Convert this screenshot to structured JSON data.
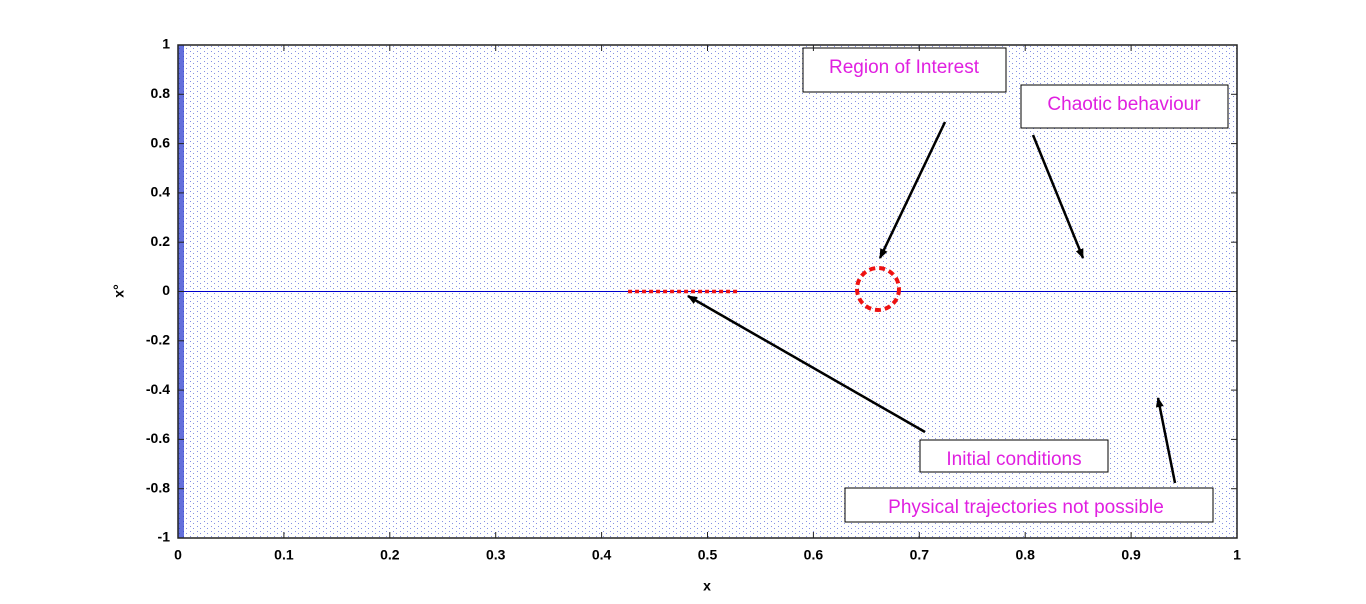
{
  "chart_data": {
    "type": "line",
    "xlabel": "x",
    "ylabel": "x°",
    "xlim": [
      0,
      1
    ],
    "ylim": [
      -1,
      1
    ],
    "xticks": [
      0,
      0.1,
      0.2,
      0.3,
      0.4,
      0.5,
      0.6,
      0.7,
      0.8,
      0.9,
      1
    ],
    "yticks": [
      -1,
      -0.8,
      -0.6,
      -0.4,
      -0.2,
      0,
      0.2,
      0.4,
      0.6,
      0.8,
      1
    ],
    "series": [
      {
        "color": "#0000cc",
        "x": [
          0,
          1
        ],
        "values": [
          0,
          0
        ]
      },
      {
        "color": "#ee1111",
        "dashed": true,
        "x": [
          0.425,
          0.53
        ],
        "values": [
          0,
          0
        ]
      }
    ],
    "annotations": [
      "Region of Interest",
      "Chaotic behaviour",
      "Initial conditions",
      "Physical trajectories not possible"
    ]
  }
}
